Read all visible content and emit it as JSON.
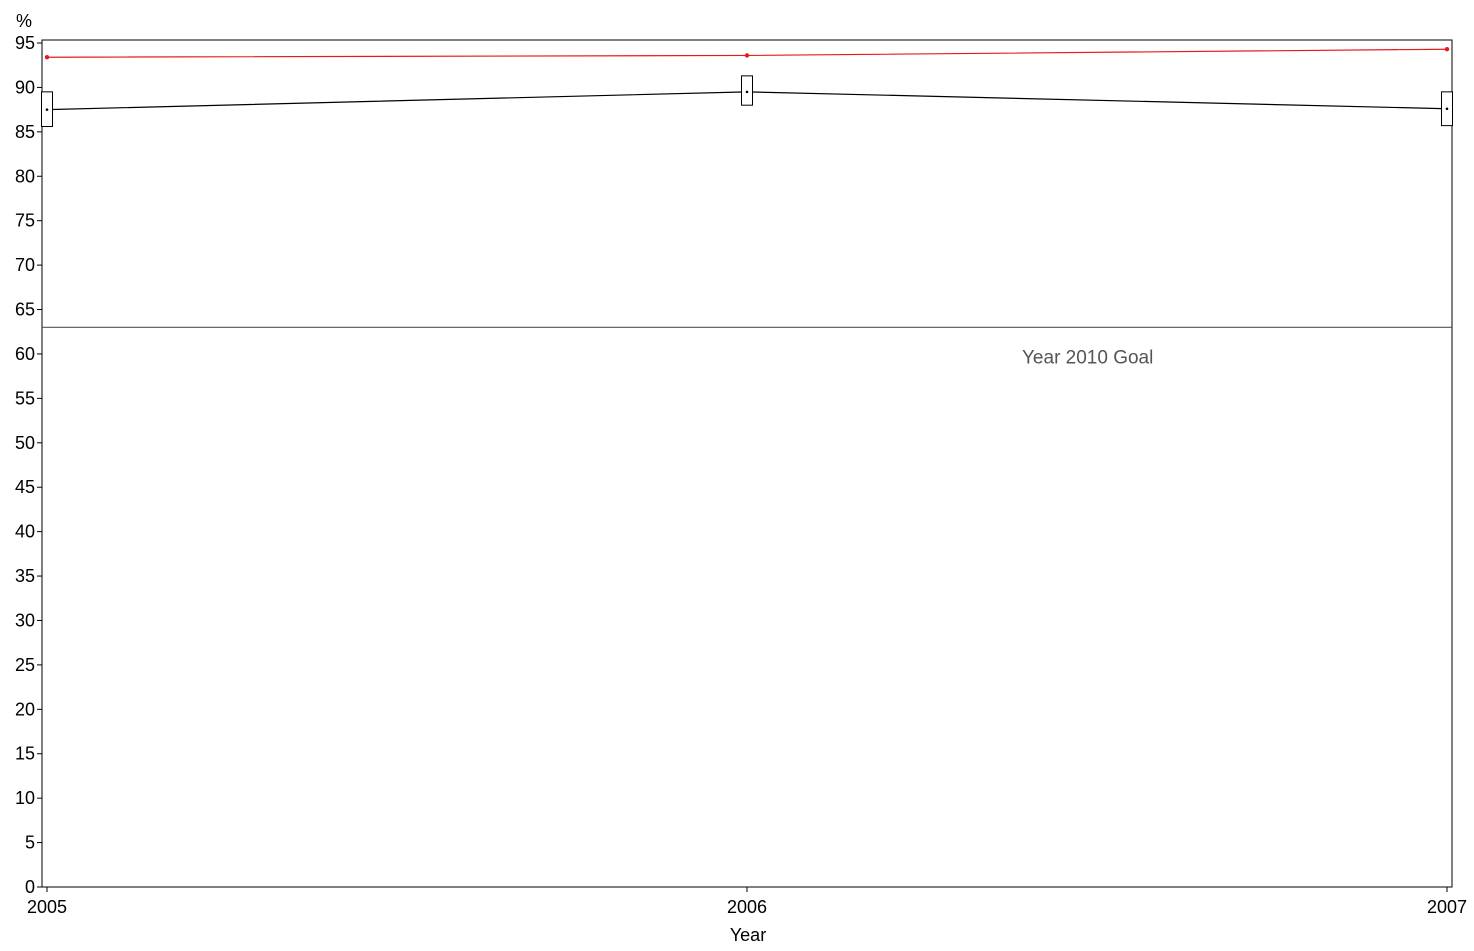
{
  "chart_data": {
    "type": "line",
    "title": "",
    "xlabel": "Year",
    "ylabel": "%",
    "x": [
      2005,
      2006,
      2007
    ],
    "xlim": [
      2005,
      2007
    ],
    "ylim": [
      0,
      95
    ],
    "x_ticks": [
      "2005",
      "2006",
      "2007"
    ],
    "y_ticks": [
      0,
      5,
      10,
      15,
      20,
      25,
      30,
      35,
      40,
      45,
      50,
      55,
      60,
      65,
      70,
      75,
      80,
      85,
      90,
      95
    ],
    "grid": false,
    "series": [
      {
        "color": "#e8191c",
        "values": [
          93.4,
          93.6,
          94.3
        ],
        "marker": "dot"
      },
      {
        "color": "#000000",
        "values": [
          87.5,
          89.5,
          87.6
        ],
        "marker": "dot",
        "interval_low": [
          85.6,
          88.0,
          85.7
        ],
        "interval_high": [
          89.5,
          91.3,
          89.5
        ]
      }
    ],
    "reference_lines": [
      {
        "value": 63,
        "label": "Year 2010 Goal",
        "color": "#555555"
      }
    ]
  }
}
